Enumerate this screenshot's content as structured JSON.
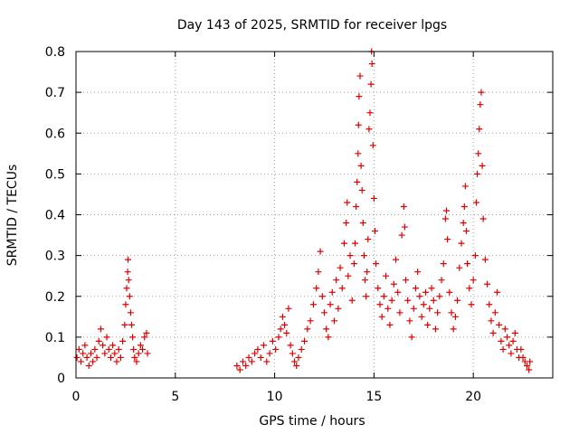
{
  "chart_data": {
    "type": "scatter",
    "title": "Day 143 of 2025, SRMTID for receiver lpgs",
    "xlabel": "GPS time / hours",
    "ylabel": "SRMTID / TECUs",
    "xlim": [
      0,
      24
    ],
    "ylim": [
      0,
      0.8
    ],
    "grid": true,
    "marker": "+",
    "color": "#e00000",
    "x_ticks": [
      0,
      5,
      10,
      15,
      20
    ],
    "y_ticks": [
      0,
      0.1,
      0.2,
      0.3,
      0.4,
      0.5,
      0.6,
      0.7,
      0.8
    ],
    "x_tick_labels": [
      "0",
      "5",
      "10",
      "15",
      "20"
    ],
    "y_tick_labels": [
      "0",
      "0.1",
      "0.2",
      "0.3",
      "0.4",
      "0.5",
      "0.6",
      "0.7",
      "0.8"
    ],
    "series": [
      {
        "name": "SRMTID",
        "points": [
          [
            0.05,
            0.05
          ],
          [
            0.15,
            0.07
          ],
          [
            0.25,
            0.04
          ],
          [
            0.35,
            0.06
          ],
          [
            0.45,
            0.08
          ],
          [
            0.55,
            0.05
          ],
          [
            0.65,
            0.03
          ],
          [
            0.75,
            0.06
          ],
          [
            0.85,
            0.04
          ],
          [
            0.95,
            0.07
          ],
          [
            1.05,
            0.05
          ],
          [
            1.15,
            0.09
          ],
          [
            1.25,
            0.12
          ],
          [
            1.35,
            0.08
          ],
          [
            1.45,
            0.06
          ],
          [
            1.55,
            0.1
          ],
          [
            1.65,
            0.07
          ],
          [
            1.75,
            0.05
          ],
          [
            1.85,
            0.08
          ],
          [
            1.95,
            0.06
          ],
          [
            2.05,
            0.04
          ],
          [
            2.15,
            0.07
          ],
          [
            2.25,
            0.05
          ],
          [
            2.35,
            0.09
          ],
          [
            2.45,
            0.13
          ],
          [
            2.5,
            0.18
          ],
          [
            2.55,
            0.22
          ],
          [
            2.6,
            0.26
          ],
          [
            2.62,
            0.29
          ],
          [
            2.65,
            0.24
          ],
          [
            2.7,
            0.2
          ],
          [
            2.75,
            0.16
          ],
          [
            2.8,
            0.13
          ],
          [
            2.85,
            0.1
          ],
          [
            2.9,
            0.07
          ],
          [
            2.95,
            0.05
          ],
          [
            3.05,
            0.04
          ],
          [
            3.15,
            0.06
          ],
          [
            3.25,
            0.08
          ],
          [
            3.35,
            0.07
          ],
          [
            3.45,
            0.1
          ],
          [
            3.55,
            0.11
          ],
          [
            3.6,
            0.06
          ],
          [
            8.1,
            0.03
          ],
          [
            8.25,
            0.02
          ],
          [
            8.4,
            0.04
          ],
          [
            8.55,
            0.03
          ],
          [
            8.7,
            0.05
          ],
          [
            8.85,
            0.04
          ],
          [
            9.0,
            0.06
          ],
          [
            9.15,
            0.07
          ],
          [
            9.3,
            0.05
          ],
          [
            9.45,
            0.08
          ],
          [
            9.6,
            0.04
          ],
          [
            9.75,
            0.06
          ],
          [
            9.9,
            0.09
          ],
          [
            10.05,
            0.07
          ],
          [
            10.2,
            0.1
          ],
          [
            10.3,
            0.12
          ],
          [
            10.4,
            0.15
          ],
          [
            10.5,
            0.13
          ],
          [
            10.6,
            0.11
          ],
          [
            10.7,
            0.17
          ],
          [
            10.8,
            0.08
          ],
          [
            10.9,
            0.06
          ],
          [
            11.0,
            0.04
          ],
          [
            11.1,
            0.03
          ],
          [
            11.2,
            0.05
          ],
          [
            11.35,
            0.07
          ],
          [
            11.5,
            0.09
          ],
          [
            11.65,
            0.12
          ],
          [
            11.8,
            0.14
          ],
          [
            11.95,
            0.18
          ],
          [
            12.1,
            0.22
          ],
          [
            12.2,
            0.26
          ],
          [
            12.3,
            0.31
          ],
          [
            12.4,
            0.2
          ],
          [
            12.5,
            0.16
          ],
          [
            12.6,
            0.12
          ],
          [
            12.7,
            0.1
          ],
          [
            12.8,
            0.18
          ],
          [
            12.9,
            0.21
          ],
          [
            13.0,
            0.14
          ],
          [
            13.1,
            0.24
          ],
          [
            13.2,
            0.17
          ],
          [
            13.3,
            0.27
          ],
          [
            13.4,
            0.22
          ],
          [
            13.5,
            0.33
          ],
          [
            13.6,
            0.38
          ],
          [
            13.65,
            0.43
          ],
          [
            13.7,
            0.25
          ],
          [
            13.8,
            0.3
          ],
          [
            13.9,
            0.19
          ],
          [
            14.0,
            0.28
          ],
          [
            14.05,
            0.33
          ],
          [
            14.1,
            0.42
          ],
          [
            14.15,
            0.48
          ],
          [
            14.2,
            0.55
          ],
          [
            14.22,
            0.62
          ],
          [
            14.25,
            0.69
          ],
          [
            14.3,
            0.74
          ],
          [
            14.35,
            0.52
          ],
          [
            14.4,
            0.46
          ],
          [
            14.45,
            0.38
          ],
          [
            14.5,
            0.3
          ],
          [
            14.55,
            0.24
          ],
          [
            14.6,
            0.2
          ],
          [
            14.65,
            0.26
          ],
          [
            14.7,
            0.34
          ],
          [
            14.75,
            0.61
          ],
          [
            14.8,
            0.65
          ],
          [
            14.85,
            0.72
          ],
          [
            14.88,
            0.8
          ],
          [
            14.9,
            0.77
          ],
          [
            14.95,
            0.57
          ],
          [
            15.0,
            0.44
          ],
          [
            15.05,
            0.36
          ],
          [
            15.1,
            0.28
          ],
          [
            15.2,
            0.22
          ],
          [
            15.3,
            0.18
          ],
          [
            15.4,
            0.15
          ],
          [
            15.5,
            0.2
          ],
          [
            15.6,
            0.25
          ],
          [
            15.7,
            0.17
          ],
          [
            15.8,
            0.13
          ],
          [
            15.9,
            0.19
          ],
          [
            16.0,
            0.23
          ],
          [
            16.1,
            0.29
          ],
          [
            16.2,
            0.21
          ],
          [
            16.3,
            0.16
          ],
          [
            16.4,
            0.35
          ],
          [
            16.5,
            0.42
          ],
          [
            16.55,
            0.37
          ],
          [
            16.6,
            0.24
          ],
          [
            16.7,
            0.19
          ],
          [
            16.8,
            0.14
          ],
          [
            16.9,
            0.1
          ],
          [
            17.0,
            0.17
          ],
          [
            17.1,
            0.22
          ],
          [
            17.2,
            0.26
          ],
          [
            17.3,
            0.2
          ],
          [
            17.4,
            0.15
          ],
          [
            17.5,
            0.18
          ],
          [
            17.6,
            0.21
          ],
          [
            17.7,
            0.13
          ],
          [
            17.8,
            0.17
          ],
          [
            17.9,
            0.22
          ],
          [
            18.0,
            0.19
          ],
          [
            18.1,
            0.12
          ],
          [
            18.2,
            0.16
          ],
          [
            18.3,
            0.2
          ],
          [
            18.4,
            0.24
          ],
          [
            18.5,
            0.28
          ],
          [
            18.6,
            0.39
          ],
          [
            18.65,
            0.41
          ],
          [
            18.7,
            0.34
          ],
          [
            18.8,
            0.21
          ],
          [
            18.9,
            0.16
          ],
          [
            19.0,
            0.12
          ],
          [
            19.1,
            0.15
          ],
          [
            19.2,
            0.19
          ],
          [
            19.3,
            0.27
          ],
          [
            19.4,
            0.33
          ],
          [
            19.5,
            0.38
          ],
          [
            19.55,
            0.42
          ],
          [
            19.6,
            0.47
          ],
          [
            19.65,
            0.36
          ],
          [
            19.7,
            0.28
          ],
          [
            19.8,
            0.22
          ],
          [
            19.9,
            0.18
          ],
          [
            20.0,
            0.24
          ],
          [
            20.1,
            0.3
          ],
          [
            20.15,
            0.43
          ],
          [
            20.2,
            0.5
          ],
          [
            20.25,
            0.55
          ],
          [
            20.3,
            0.61
          ],
          [
            20.35,
            0.67
          ],
          [
            20.4,
            0.7
          ],
          [
            20.45,
            0.52
          ],
          [
            20.5,
            0.39
          ],
          [
            20.6,
            0.29
          ],
          [
            20.7,
            0.23
          ],
          [
            20.8,
            0.18
          ],
          [
            20.9,
            0.14
          ],
          [
            21.0,
            0.11
          ],
          [
            21.1,
            0.16
          ],
          [
            21.2,
            0.21
          ],
          [
            21.3,
            0.13
          ],
          [
            21.4,
            0.09
          ],
          [
            21.5,
            0.07
          ],
          [
            21.6,
            0.12
          ],
          [
            21.7,
            0.1
          ],
          [
            21.8,
            0.08
          ],
          [
            21.9,
            0.06
          ],
          [
            22.0,
            0.09
          ],
          [
            22.1,
            0.11
          ],
          [
            22.2,
            0.07
          ],
          [
            22.3,
            0.05
          ],
          [
            22.4,
            0.07
          ],
          [
            22.5,
            0.05
          ],
          [
            22.6,
            0.04
          ],
          [
            22.7,
            0.03
          ],
          [
            22.8,
            0.02
          ],
          [
            22.85,
            0.04
          ]
        ]
      }
    ]
  }
}
